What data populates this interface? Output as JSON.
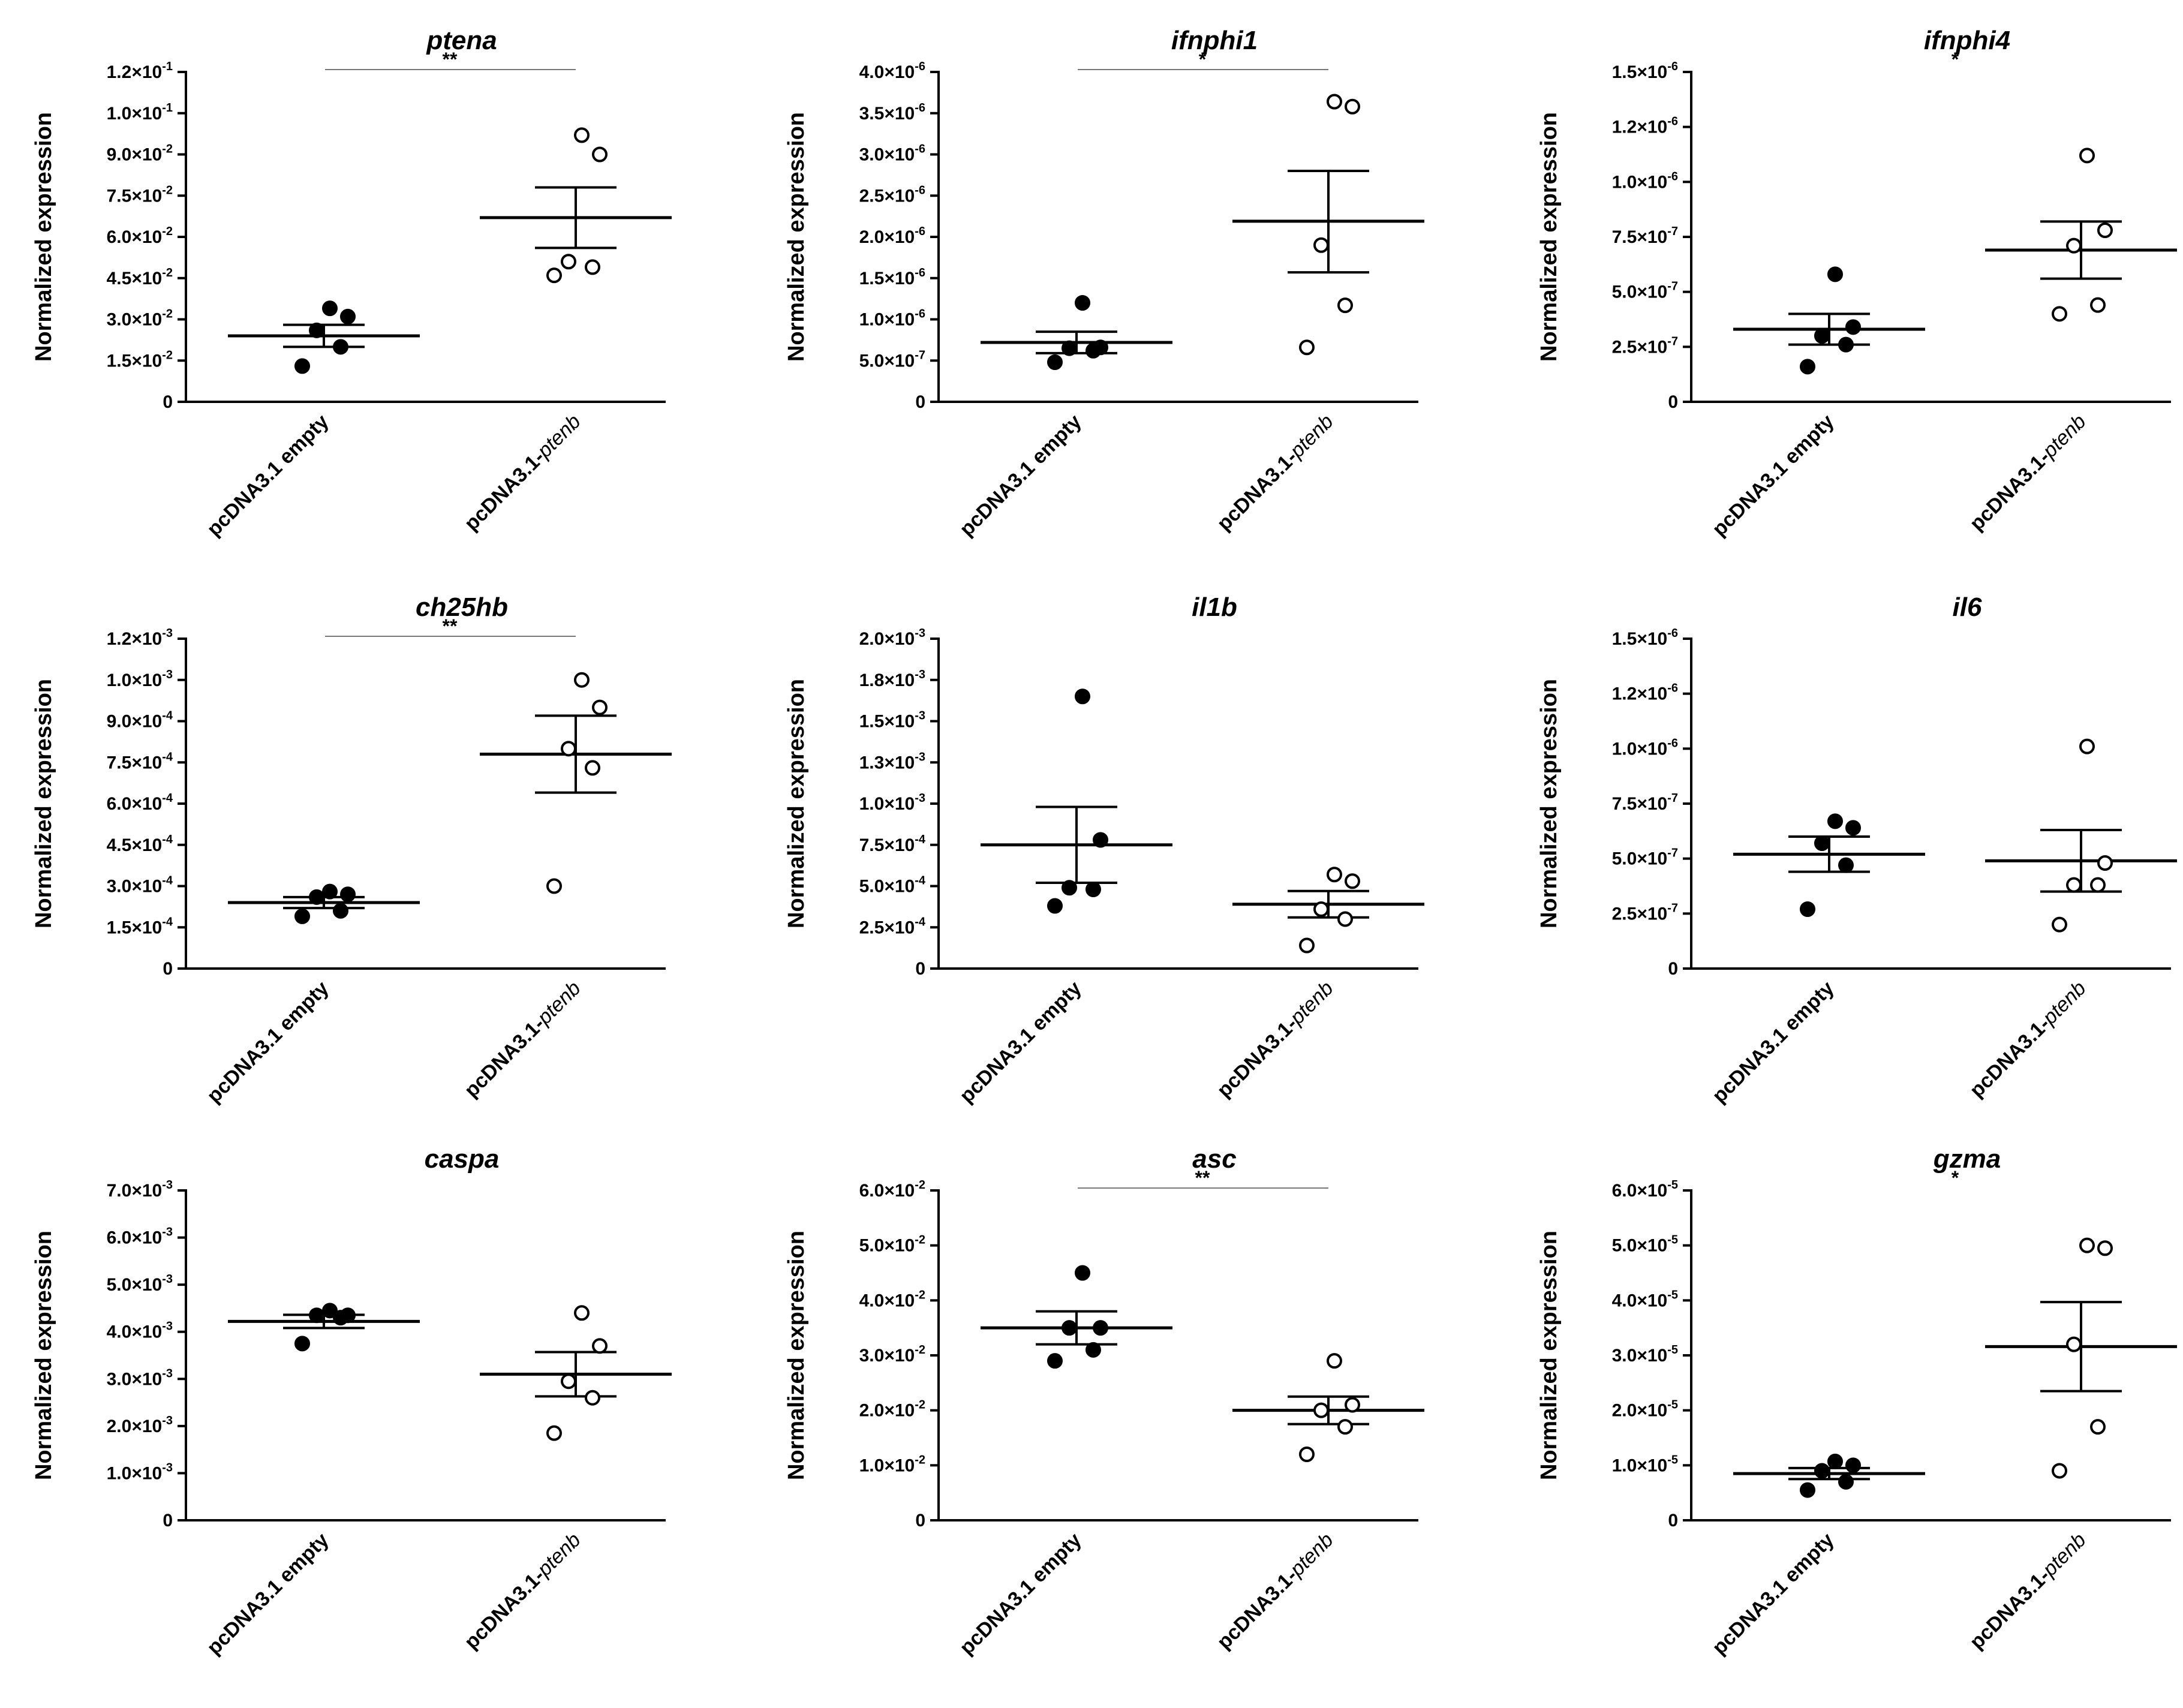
{
  "chart_data": [
    {
      "type": "scatter",
      "title": "ptena",
      "ylabel": "Normalized expression",
      "ylim": [
        0,
        0.12
      ],
      "yticks": [
        "0",
        "1.5×10⁻²",
        "3.0×10⁻²",
        "4.5×10⁻²",
        "6.0×10⁻²",
        "7.5×10⁻²",
        "9.0×10⁻²",
        "1.0×10⁻¹",
        "1.2×10⁻¹"
      ],
      "categories": [
        "pcDNA3.1 empty",
        "pcDNA3.1-ptenb"
      ],
      "significance": "**",
      "groups": [
        {
          "name": "pcDNA3.1 empty",
          "marker": "filled",
          "points": [
            0.013,
            0.02,
            0.026,
            0.031,
            0.034
          ],
          "mean": 0.024,
          "sem_low": 0.02,
          "sem_high": 0.028
        },
        {
          "name": "pcDNA3.1-ptenb",
          "marker": "open",
          "points": [
            0.046,
            0.049,
            0.051,
            0.09,
            0.097
          ],
          "mean": 0.067,
          "sem_low": 0.056,
          "sem_high": 0.078
        }
      ]
    },
    {
      "type": "scatter",
      "title": "ifnphi1",
      "ylabel": "Normalized expression",
      "ylim": [
        0,
        4e-06
      ],
      "yticks": [
        "0",
        "5.0×10⁻⁷",
        "1.0×10⁻⁶",
        "1.5×10⁻⁶",
        "2.0×10⁻⁶",
        "2.5×10⁻⁶",
        "3.0×10⁻⁶",
        "3.5×10⁻⁶",
        "4.0×10⁻⁶"
      ],
      "categories": [
        "pcDNA3.1 empty",
        "pcDNA3.1-ptenb"
      ],
      "significance": "*",
      "groups": [
        {
          "name": "pcDNA3.1 empty",
          "marker": "filled",
          "points": [
            4.8e-07,
            6.2e-07,
            6.5e-07,
            6.6e-07,
            1.2e-06
          ],
          "mean": 7.2e-07,
          "sem_low": 5.9e-07,
          "sem_high": 8.5e-07
        },
        {
          "name": "pcDNA3.1-ptenb",
          "marker": "open",
          "points": [
            6.6e-07,
            1.17e-06,
            1.9e-06,
            3.58e-06,
            3.64e-06
          ],
          "mean": 2.19e-06,
          "sem_low": 1.57e-06,
          "sem_high": 2.8e-06
        }
      ]
    },
    {
      "type": "scatter",
      "title": "ifnphi4",
      "ylabel": "Normalized expression",
      "ylim": [
        0,
        1.5e-06
      ],
      "yticks": [
        "0",
        "2.5×10⁻⁷",
        "5.0×10⁻⁷",
        "7.5×10⁻⁷",
        "1.0×10⁻⁶",
        "1.2×10⁻⁶",
        "1.5×10⁻⁶"
      ],
      "categories": [
        "pcDNA3.1 empty",
        "pcDNA3.1-ptenb"
      ],
      "significance": "*",
      "groups": [
        {
          "name": "pcDNA3.1 empty",
          "marker": "filled",
          "points": [
            1.6e-07,
            2.6e-07,
            3e-07,
            3.4e-07,
            5.8e-07
          ],
          "mean": 3.3e-07,
          "sem_low": 2.6e-07,
          "sem_high": 4e-07
        },
        {
          "name": "pcDNA3.1-ptenb",
          "marker": "open",
          "points": [
            4e-07,
            4.4e-07,
            7.1e-07,
            7.8e-07,
            1.12e-06
          ],
          "mean": 6.9e-07,
          "sem_low": 5.6e-07,
          "sem_high": 8.2e-07
        }
      ]
    },
    {
      "type": "scatter",
      "title": "ch25hb",
      "ylabel": "Normalized expression",
      "ylim": [
        0,
        0.0012
      ],
      "yticks": [
        "0",
        "1.5×10⁻⁴",
        "3.0×10⁻⁴",
        "4.5×10⁻⁴",
        "6.0×10⁻⁴",
        "7.5×10⁻⁴",
        "9.0×10⁻⁴",
        "1.0×10⁻³",
        "1.2×10⁻³"
      ],
      "categories": [
        "pcDNA3.1 empty",
        "pcDNA3.1-ptenb"
      ],
      "significance": "**",
      "groups": [
        {
          "name": "pcDNA3.1 empty",
          "marker": "filled",
          "points": [
            0.00019,
            0.00021,
            0.00026,
            0.00027,
            0.00028
          ],
          "mean": 0.00024,
          "sem_low": 0.00022,
          "sem_high": 0.00026
        },
        {
          "name": "pcDNA3.1-ptenb",
          "marker": "open",
          "points": [
            0.0003,
            0.00073,
            0.0008,
            0.00095,
            0.00105
          ],
          "mean": 0.00078,
          "sem_low": 0.00064,
          "sem_high": 0.00092
        }
      ]
    },
    {
      "type": "scatter",
      "title": "il1b",
      "ylabel": "Normalized expression",
      "ylim": [
        0,
        0.002
      ],
      "yticks": [
        "0",
        "2.5×10⁻⁴",
        "5.0×10⁻⁴",
        "7.5×10⁻⁴",
        "1.0×10⁻³",
        "1.3×10⁻³",
        "1.5×10⁻³",
        "1.8×10⁻³",
        "2.0×10⁻³"
      ],
      "categories": [
        "pcDNA3.1 empty",
        "pcDNA3.1-ptenb"
      ],
      "significance": "",
      "groups": [
        {
          "name": "pcDNA3.1 empty",
          "marker": "filled",
          "points": [
            0.00038,
            0.00048,
            0.00049,
            0.00078,
            0.00165
          ],
          "mean": 0.00075,
          "sem_low": 0.00052,
          "sem_high": 0.00098
        },
        {
          "name": "pcDNA3.1-ptenb",
          "marker": "open",
          "points": [
            0.00014,
            0.0003,
            0.00036,
            0.00053,
            0.00057
          ],
          "mean": 0.00039,
          "sem_low": 0.00031,
          "sem_high": 0.00047
        }
      ]
    },
    {
      "type": "scatter",
      "title": "il6",
      "ylabel": "Normalized expression",
      "ylim": [
        0,
        1.5e-06
      ],
      "yticks": [
        "0",
        "2.5×10⁻⁷",
        "5.0×10⁻⁷",
        "7.5×10⁻⁷",
        "1.0×10⁻⁶",
        "1.2×10⁻⁶",
        "1.5×10⁻⁶"
      ],
      "categories": [
        "pcDNA3.1 empty",
        "pcDNA3.1-ptenb"
      ],
      "significance": "",
      "groups": [
        {
          "name": "pcDNA3.1 empty",
          "marker": "filled",
          "points": [
            2.7e-07,
            4.7e-07,
            5.7e-07,
            6.4e-07,
            6.7e-07
          ],
          "mean": 5.2e-07,
          "sem_low": 4.4e-07,
          "sem_high": 6e-07
        },
        {
          "name": "pcDNA3.1-ptenb",
          "marker": "open",
          "points": [
            2e-07,
            3.8e-07,
            3.8e-07,
            4.8e-07,
            1.01e-06
          ],
          "mean": 4.9e-07,
          "sem_low": 3.5e-07,
          "sem_high": 6.3e-07
        }
      ]
    },
    {
      "type": "scatter",
      "title": "caspa",
      "ylabel": "Normalized expression",
      "ylim": [
        0,
        0.007
      ],
      "yticks": [
        "0",
        "1.0×10⁻³",
        "2.0×10⁻³",
        "3.0×10⁻³",
        "4.0×10⁻³",
        "5.0×10⁻³",
        "6.0×10⁻³",
        "7.0×10⁻³"
      ],
      "categories": [
        "pcDNA3.1 empty",
        "pcDNA3.1-ptenb"
      ],
      "significance": "",
      "groups": [
        {
          "name": "pcDNA3.1 empty",
          "marker": "filled",
          "points": [
            0.00375,
            0.0043,
            0.00435,
            0.00435,
            0.00445
          ],
          "mean": 0.00422,
          "sem_low": 0.00408,
          "sem_high": 0.00436
        },
        {
          "name": "pcDNA3.1-ptenb",
          "marker": "open",
          "points": [
            0.00185,
            0.0026,
            0.00295,
            0.0037,
            0.0044
          ],
          "mean": 0.0031,
          "sem_low": 0.00263,
          "sem_high": 0.00357
        }
      ]
    },
    {
      "type": "scatter",
      "title": "asc",
      "ylabel": "Normalized expression",
      "ylim": [
        0,
        0.06
      ],
      "yticks": [
        "0",
        "1.0×10⁻²",
        "2.0×10⁻²",
        "3.0×10⁻²",
        "4.0×10⁻²",
        "5.0×10⁻²",
        "6.0×10⁻²"
      ],
      "categories": [
        "pcDNA3.1 empty",
        "pcDNA3.1-ptenb"
      ],
      "significance": "**",
      "groups": [
        {
          "name": "pcDNA3.1 empty",
          "marker": "filled",
          "points": [
            0.029,
            0.031,
            0.035,
            0.035,
            0.045
          ],
          "mean": 0.035,
          "sem_low": 0.032,
          "sem_high": 0.038
        },
        {
          "name": "pcDNA3.1-ptenb",
          "marker": "open",
          "points": [
            0.012,
            0.017,
            0.02,
            0.021,
            0.029
          ],
          "mean": 0.02,
          "sem_low": 0.0175,
          "sem_high": 0.0225
        }
      ]
    },
    {
      "type": "scatter",
      "title": "gzma",
      "ylabel": "Normalized expression",
      "ylim": [
        0,
        6e-05
      ],
      "yticks": [
        "0",
        "1.0×10⁻⁵",
        "2.0×10⁻⁵",
        "3.0×10⁻⁵",
        "4.0×10⁻⁵",
        "5.0×10⁻⁵",
        "6.0×10⁻⁵"
      ],
      "categories": [
        "pcDNA3.1 empty",
        "pcDNA3.1-ptenb"
      ],
      "significance": "*",
      "groups": [
        {
          "name": "pcDNA3.1 empty",
          "marker": "filled",
          "points": [
            5.5e-06,
            7e-06,
            9e-06,
            1e-05,
            1.07e-05
          ],
          "mean": 8.5e-06,
          "sem_low": 7.5e-06,
          "sem_high": 9.5e-06
        },
        {
          "name": "pcDNA3.1-ptenb",
          "marker": "open",
          "points": [
            9e-06,
            1.7e-05,
            3.2e-05,
            4.95e-05,
            5e-05
          ],
          "mean": 3.16e-05,
          "sem_low": 2.35e-05,
          "sem_high": 3.97e-05
        }
      ]
    }
  ]
}
